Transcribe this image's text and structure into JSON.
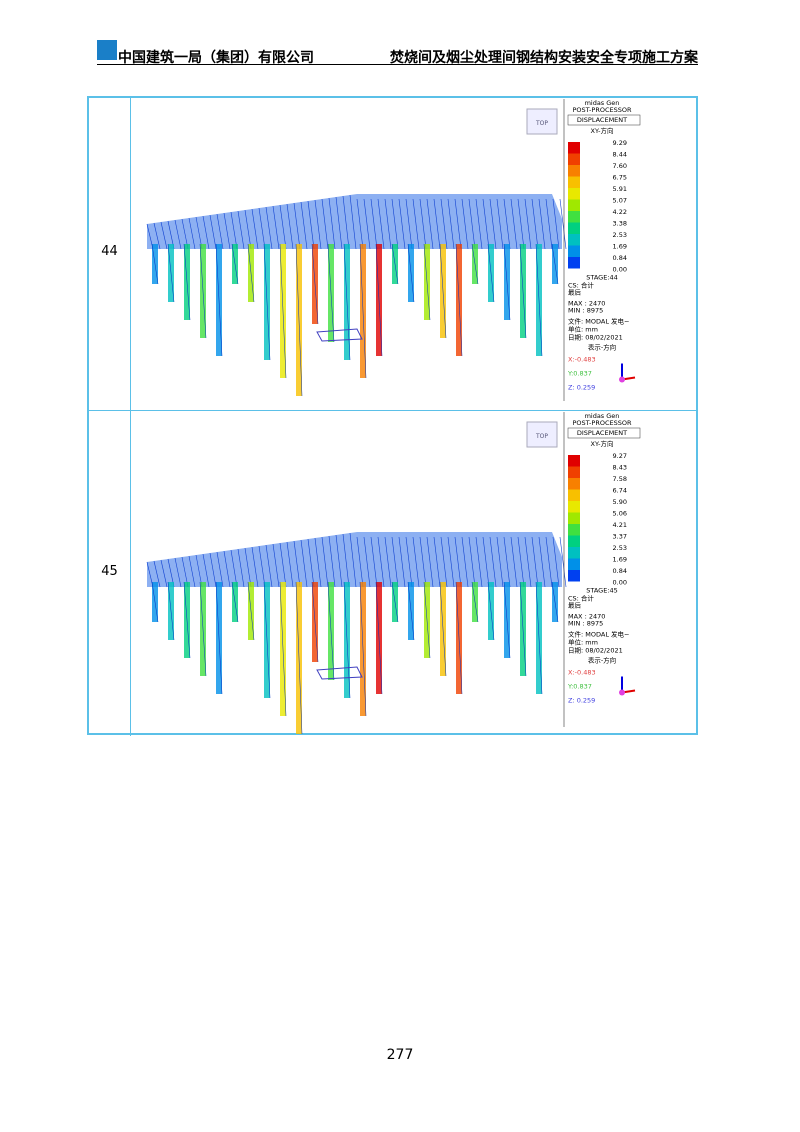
{
  "header": {
    "company": "中国建筑一局（集团）有限公司",
    "title": "焚烧间及烟尘处理间钢结构安装安全专项施工方案"
  },
  "table": {
    "rows": [
      {
        "stage": "44",
        "panel": {
          "software": "midas Gen",
          "module": "POST-PROCESSOR",
          "result": "DISPLACEMENT",
          "direction": "XY-方向",
          "legend": [
            "9.29",
            "8.44",
            "7.60",
            "6.75",
            "5.91",
            "5.07",
            "4.22",
            "3.38",
            "2.53",
            "1.69",
            "0.84",
            "0.00"
          ],
          "stage_label": "STAGE:44",
          "cs": "CS: 合计",
          "step": "最后",
          "max": "MAX : 2470",
          "min": "MIN : 8975",
          "file": "文件: MODAL 发电~",
          "unit": "单位: mm",
          "date": "日期: 08/02/2021",
          "view": "表示-方向",
          "x": "X:-0.483",
          "y": "Y:0.837",
          "z": "Z: 0.259",
          "cube": "TOP"
        }
      },
      {
        "stage": "45",
        "panel": {
          "software": "midas Gen",
          "module": "POST-PROCESSOR",
          "result": "DISPLACEMENT",
          "direction": "XY-方向",
          "legend": [
            "9.27",
            "8.43",
            "7.58",
            "6.74",
            "5.90",
            "5.06",
            "4.21",
            "3.37",
            "2.53",
            "1.69",
            "0.84",
            "0.00"
          ],
          "stage_label": "STAGE:45",
          "cs": "CS: 合计",
          "step": "最后",
          "max": "MAX : 2470",
          "min": "MIN : 8975",
          "file": "文件: MODAL 发电~",
          "unit": "单位: mm",
          "date": "日期: 08/02/2021",
          "view": "表示-方向",
          "x": "X:-0.483",
          "y": "Y:0.837",
          "z": "Z: 0.259",
          "cube": "TOP"
        }
      }
    ]
  },
  "footer": {
    "page": "277"
  }
}
